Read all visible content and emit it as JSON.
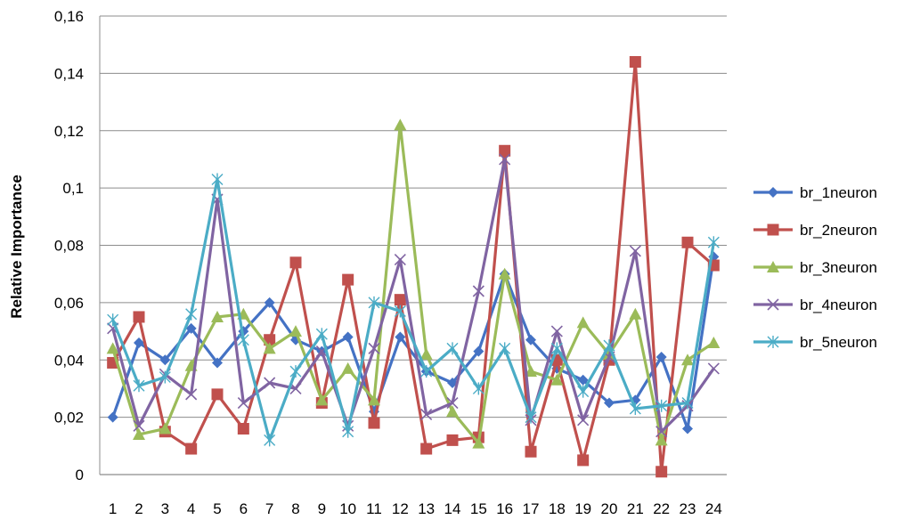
{
  "chart_data": {
    "type": "line",
    "title": "",
    "xlabel": "",
    "ylabel": "Relative Importance",
    "ylim": [
      0,
      0.16
    ],
    "yticks": [
      0,
      0.02,
      0.04,
      0.06,
      0.08,
      0.1,
      0.12,
      0.14,
      0.16
    ],
    "ytick_labels": [
      "0",
      "0,02",
      "0,04",
      "0,06",
      "0,08",
      "0,1",
      "0,12",
      "0,14",
      "0,16"
    ],
    "categories": [
      "1",
      "2",
      "3",
      "4",
      "5",
      "6",
      "7",
      "8",
      "9",
      "10",
      "11",
      "12",
      "13",
      "14",
      "15",
      "16",
      "17",
      "18",
      "19",
      "20",
      "21",
      "22",
      "23",
      "24"
    ],
    "grid": "horizontal",
    "legend_position": "right",
    "series": [
      {
        "name": "br_1neuron",
        "color": "#4472C4",
        "marker": "diamond",
        "values": [
          0.02,
          0.046,
          0.04,
          0.051,
          0.039,
          0.05,
          0.06,
          0.047,
          0.043,
          0.048,
          0.022,
          0.048,
          0.036,
          0.032,
          0.043,
          0.07,
          0.047,
          0.037,
          0.033,
          0.025,
          0.026,
          0.041,
          0.016,
          0.076
        ]
      },
      {
        "name": "br_2neuron",
        "color": "#C0504D",
        "marker": "square",
        "values": [
          0.039,
          0.055,
          0.015,
          0.009,
          0.028,
          0.016,
          0.047,
          0.074,
          0.025,
          0.068,
          0.018,
          0.061,
          0.009,
          0.012,
          0.013,
          0.113,
          0.008,
          0.04,
          0.005,
          0.04,
          0.144,
          0.001,
          0.081,
          0.073
        ]
      },
      {
        "name": "br_3neuron",
        "color": "#9BBB59",
        "marker": "triangle",
        "values": [
          0.044,
          0.014,
          0.016,
          0.038,
          0.055,
          0.056,
          0.044,
          0.05,
          0.026,
          0.037,
          0.026,
          0.122,
          0.042,
          0.022,
          0.011,
          0.07,
          0.036,
          0.033,
          0.053,
          0.042,
          0.056,
          0.012,
          0.04,
          0.046
        ]
      },
      {
        "name": "br_4neuron",
        "color": "#8064A2",
        "marker": "x",
        "values": [
          0.051,
          0.017,
          0.035,
          0.028,
          0.096,
          0.025,
          0.032,
          0.03,
          0.043,
          0.017,
          0.044,
          0.075,
          0.021,
          0.025,
          0.064,
          0.11,
          0.019,
          0.05,
          0.019,
          0.041,
          0.078,
          0.015,
          0.024,
          0.037
        ]
      },
      {
        "name": "br_5neuron",
        "color": "#4BACC6",
        "marker": "asterisk",
        "values": [
          0.054,
          0.031,
          0.034,
          0.056,
          0.103,
          0.047,
          0.012,
          0.036,
          0.049,
          0.015,
          0.06,
          0.057,
          0.036,
          0.044,
          0.03,
          0.044,
          0.02,
          0.044,
          0.029,
          0.045,
          0.023,
          0.024,
          0.025,
          0.081
        ]
      }
    ]
  }
}
